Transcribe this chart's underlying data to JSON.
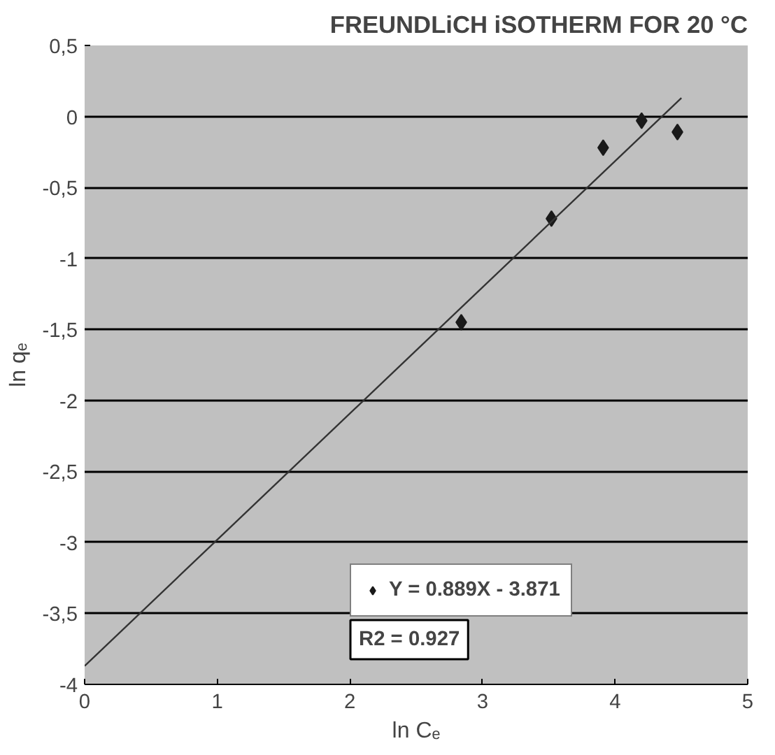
{
  "chart_data": {
    "type": "scatter",
    "title": "FREUNDLiCH iSOTHERM FOR 20 °C",
    "xlabel": "ln Cₑ",
    "ylabel": "ln qₑ",
    "series": [
      {
        "name": "Y = 0.889X - 3.871",
        "color": "#1a1a1a",
        "marker": "diamond",
        "x": [
          2.84,
          3.52,
          3.91,
          4.2,
          4.47
        ],
        "values": [
          -1.45,
          -0.72,
          -0.22,
          -0.03,
          -0.11
        ]
      },
      {
        "type": "line",
        "color": "#333333",
        "x": [
          0,
          4.5
        ],
        "values": [
          -3.87,
          0.13
        ]
      }
    ],
    "xlim": [
      0,
      5
    ],
    "ylim": [
      -4,
      0.5
    ],
    "xticks": [
      0,
      1,
      2,
      3,
      4,
      5
    ],
    "yticks": [
      {
        "value": 0.5,
        "label": "0,5"
      },
      0,
      {
        "value": -0.5,
        "label": "-0,5"
      },
      -1,
      {
        "value": -1.5,
        "label": "-1,5"
      },
      -2,
      {
        "value": -2.5,
        "label": "-2,5"
      },
      -3,
      {
        "value": -3.5,
        "label": "-3,5"
      },
      -4
    ],
    "grid": "y",
    "legend": "bottom right",
    "annotations": [
      "R2 = 0.927"
    ]
  }
}
